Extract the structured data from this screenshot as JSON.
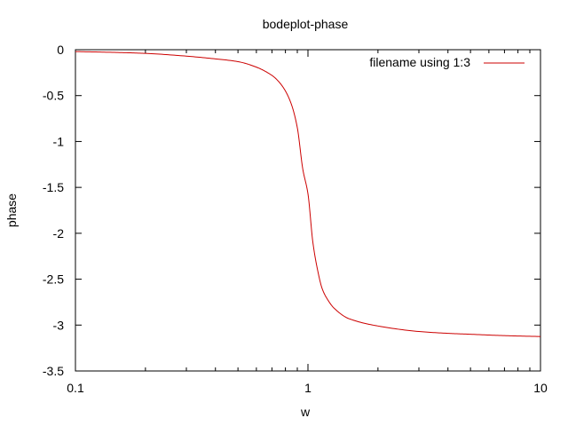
{
  "chart_data": {
    "type": "line",
    "title": "bodeplot-phase",
    "xlabel": "w",
    "ylabel": "phase",
    "xscale": "log",
    "xlim": [
      0.1,
      10
    ],
    "ylim": [
      -3.5,
      0
    ],
    "x_ticks": [
      0.1,
      1,
      10
    ],
    "x_tick_labels": [
      "0.1",
      "1",
      "10"
    ],
    "y_ticks": [
      0,
      -0.5,
      -1,
      -1.5,
      -2,
      -2.5,
      -3,
      -3.5
    ],
    "y_tick_labels": [
      "0",
      "-0.5",
      "-1",
      "-1.5",
      "-2",
      "-2.5",
      "-3",
      "-3.5"
    ],
    "grid": false,
    "legend_position": "top-right",
    "series": [
      {
        "name": "filename using 1:3",
        "color": "#cc0000",
        "x": [
          0.1,
          0.15,
          0.2,
          0.3,
          0.4,
          0.5,
          0.6,
          0.7,
          0.75,
          0.8,
          0.85,
          0.9,
          0.95,
          1.0,
          1.05,
          1.1,
          1.15,
          1.2,
          1.3,
          1.5,
          2,
          3,
          4,
          5,
          7,
          10
        ],
        "y": [
          -0.02,
          -0.03,
          -0.04,
          -0.07,
          -0.1,
          -0.13,
          -0.19,
          -0.28,
          -0.35,
          -0.45,
          -0.6,
          -0.85,
          -1.3,
          -1.57,
          -2.1,
          -2.4,
          -2.6,
          -2.7,
          -2.82,
          -2.93,
          -3.01,
          -3.07,
          -3.09,
          -3.1,
          -3.115,
          -3.125
        ]
      }
    ]
  }
}
